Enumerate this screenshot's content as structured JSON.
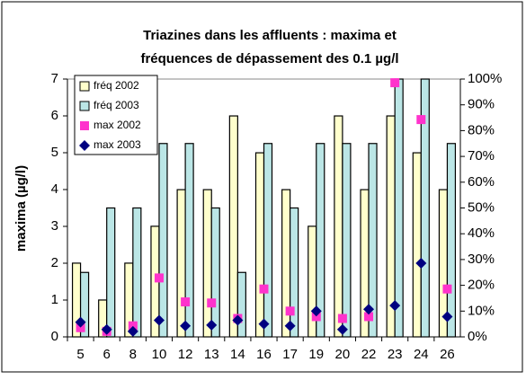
{
  "chart_data": {
    "type": "bar",
    "title": [
      "Triazines dans les affluents : maxima et",
      "fréquences de dépassement des 0.1 µg/l"
    ],
    "ylabel": "maxima (µg/l)",
    "categories": [
      "5",
      "6",
      "8",
      "10",
      "12",
      "13",
      "14",
      "16",
      "17",
      "19",
      "20",
      "22",
      "23",
      "24",
      "26"
    ],
    "ylim": [
      0,
      7
    ],
    "yticks": [
      0,
      1,
      2,
      3,
      4,
      5,
      6,
      7
    ],
    "y2lim": [
      0,
      100
    ],
    "y2ticks": [
      {
        "value": 0,
        "label": "0%"
      },
      {
        "value": 10,
        "label": "10%"
      },
      {
        "value": 20,
        "label": "20%"
      },
      {
        "value": 30,
        "label": "30%"
      },
      {
        "value": 40,
        "label": "40%"
      },
      {
        "value": 50,
        "label": "50%"
      },
      {
        "value": 60,
        "label": "60%"
      },
      {
        "value": 70,
        "label": "70%"
      },
      {
        "value": 80,
        "label": "80%"
      },
      {
        "value": 90,
        "label": "90%"
      },
      {
        "value": 100,
        "label": "100%"
      }
    ],
    "legend": "upper left",
    "series": [
      {
        "name": "fréq 2002",
        "type": "bar",
        "axis": "y2",
        "color": "#ffffcc",
        "values": [
          28.6,
          14.3,
          28.6,
          42.9,
          57.1,
          57.1,
          85.7,
          71.4,
          57.1,
          42.9,
          85.7,
          57.1,
          85.7,
          71.4,
          57.1
        ]
      },
      {
        "name": "fréq 2003",
        "type": "bar",
        "axis": "y2",
        "color": "#bbe6e6",
        "values": [
          25,
          50,
          50,
          75,
          75,
          50,
          25,
          75,
          50,
          75,
          75,
          75,
          100,
          100,
          75
        ]
      },
      {
        "name": "max 2002",
        "type": "square",
        "color": "#ff33cc",
        "values": [
          0.25,
          0.15,
          0.3,
          1.6,
          0.95,
          0.92,
          0.5,
          1.3,
          0.7,
          0.55,
          0.5,
          0.55,
          6.9,
          5.9,
          1.3
        ]
      },
      {
        "name": "max 2003",
        "type": "diamond",
        "color": "#000080",
        "values": [
          0.4,
          0.2,
          0.15,
          0.45,
          0.3,
          0.32,
          0.45,
          0.35,
          0.3,
          0.7,
          0.2,
          0.75,
          0.85,
          2.0,
          0.55
        ]
      }
    ]
  }
}
